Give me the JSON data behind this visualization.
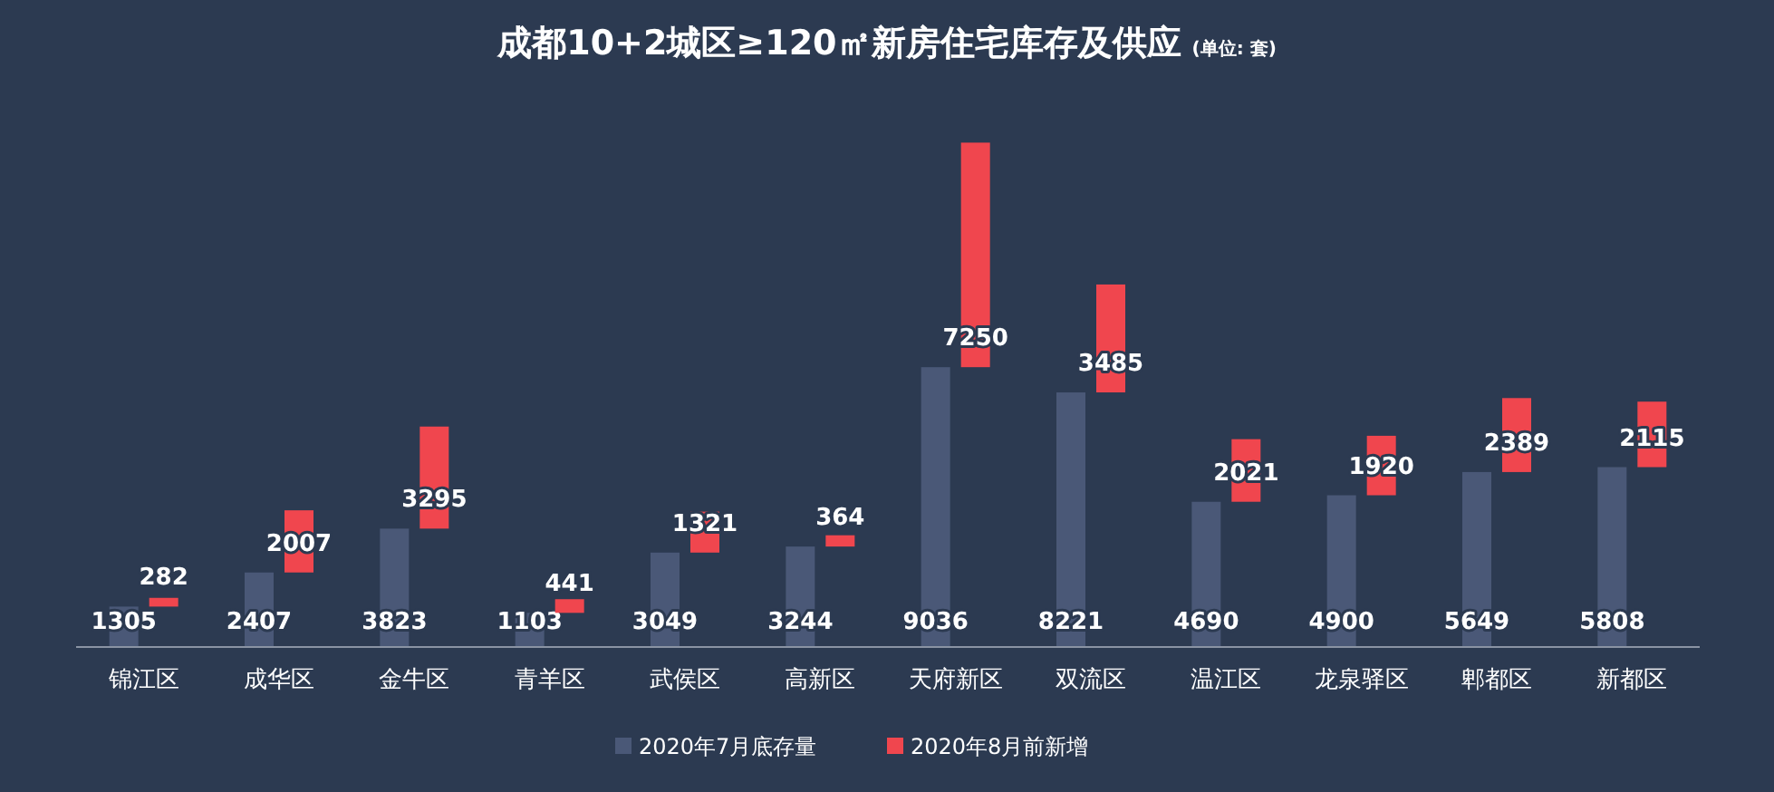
{
  "chart_data": {
    "type": "bar",
    "title": "成都10+2城区≥120㎡新房住宅库存及供应",
    "subtitle": "(单位: 套)",
    "categories": [
      "锦江区",
      "成华区",
      "金牛区",
      "青羊区",
      "武侯区",
      "高新区",
      "天府新区",
      "双流区",
      "温江区",
      "龙泉驿区",
      "郫都区",
      "新都区"
    ],
    "stacked": true,
    "series": [
      {
        "name": "2020年7月底存量",
        "color": "#4a5877",
        "values": [
          1305,
          2407,
          3823,
          1103,
          3049,
          3244,
          9036,
          8221,
          4690,
          4900,
          5649,
          5808
        ]
      },
      {
        "name": "2020年8月前新增",
        "color": "#f0464e",
        "values": [
          282,
          2007,
          3295,
          441,
          1321,
          364,
          7250,
          3485,
          2021,
          1920,
          2389,
          2115
        ]
      }
    ],
    "data_labels": true,
    "legend": "bottom",
    "grid": false
  }
}
